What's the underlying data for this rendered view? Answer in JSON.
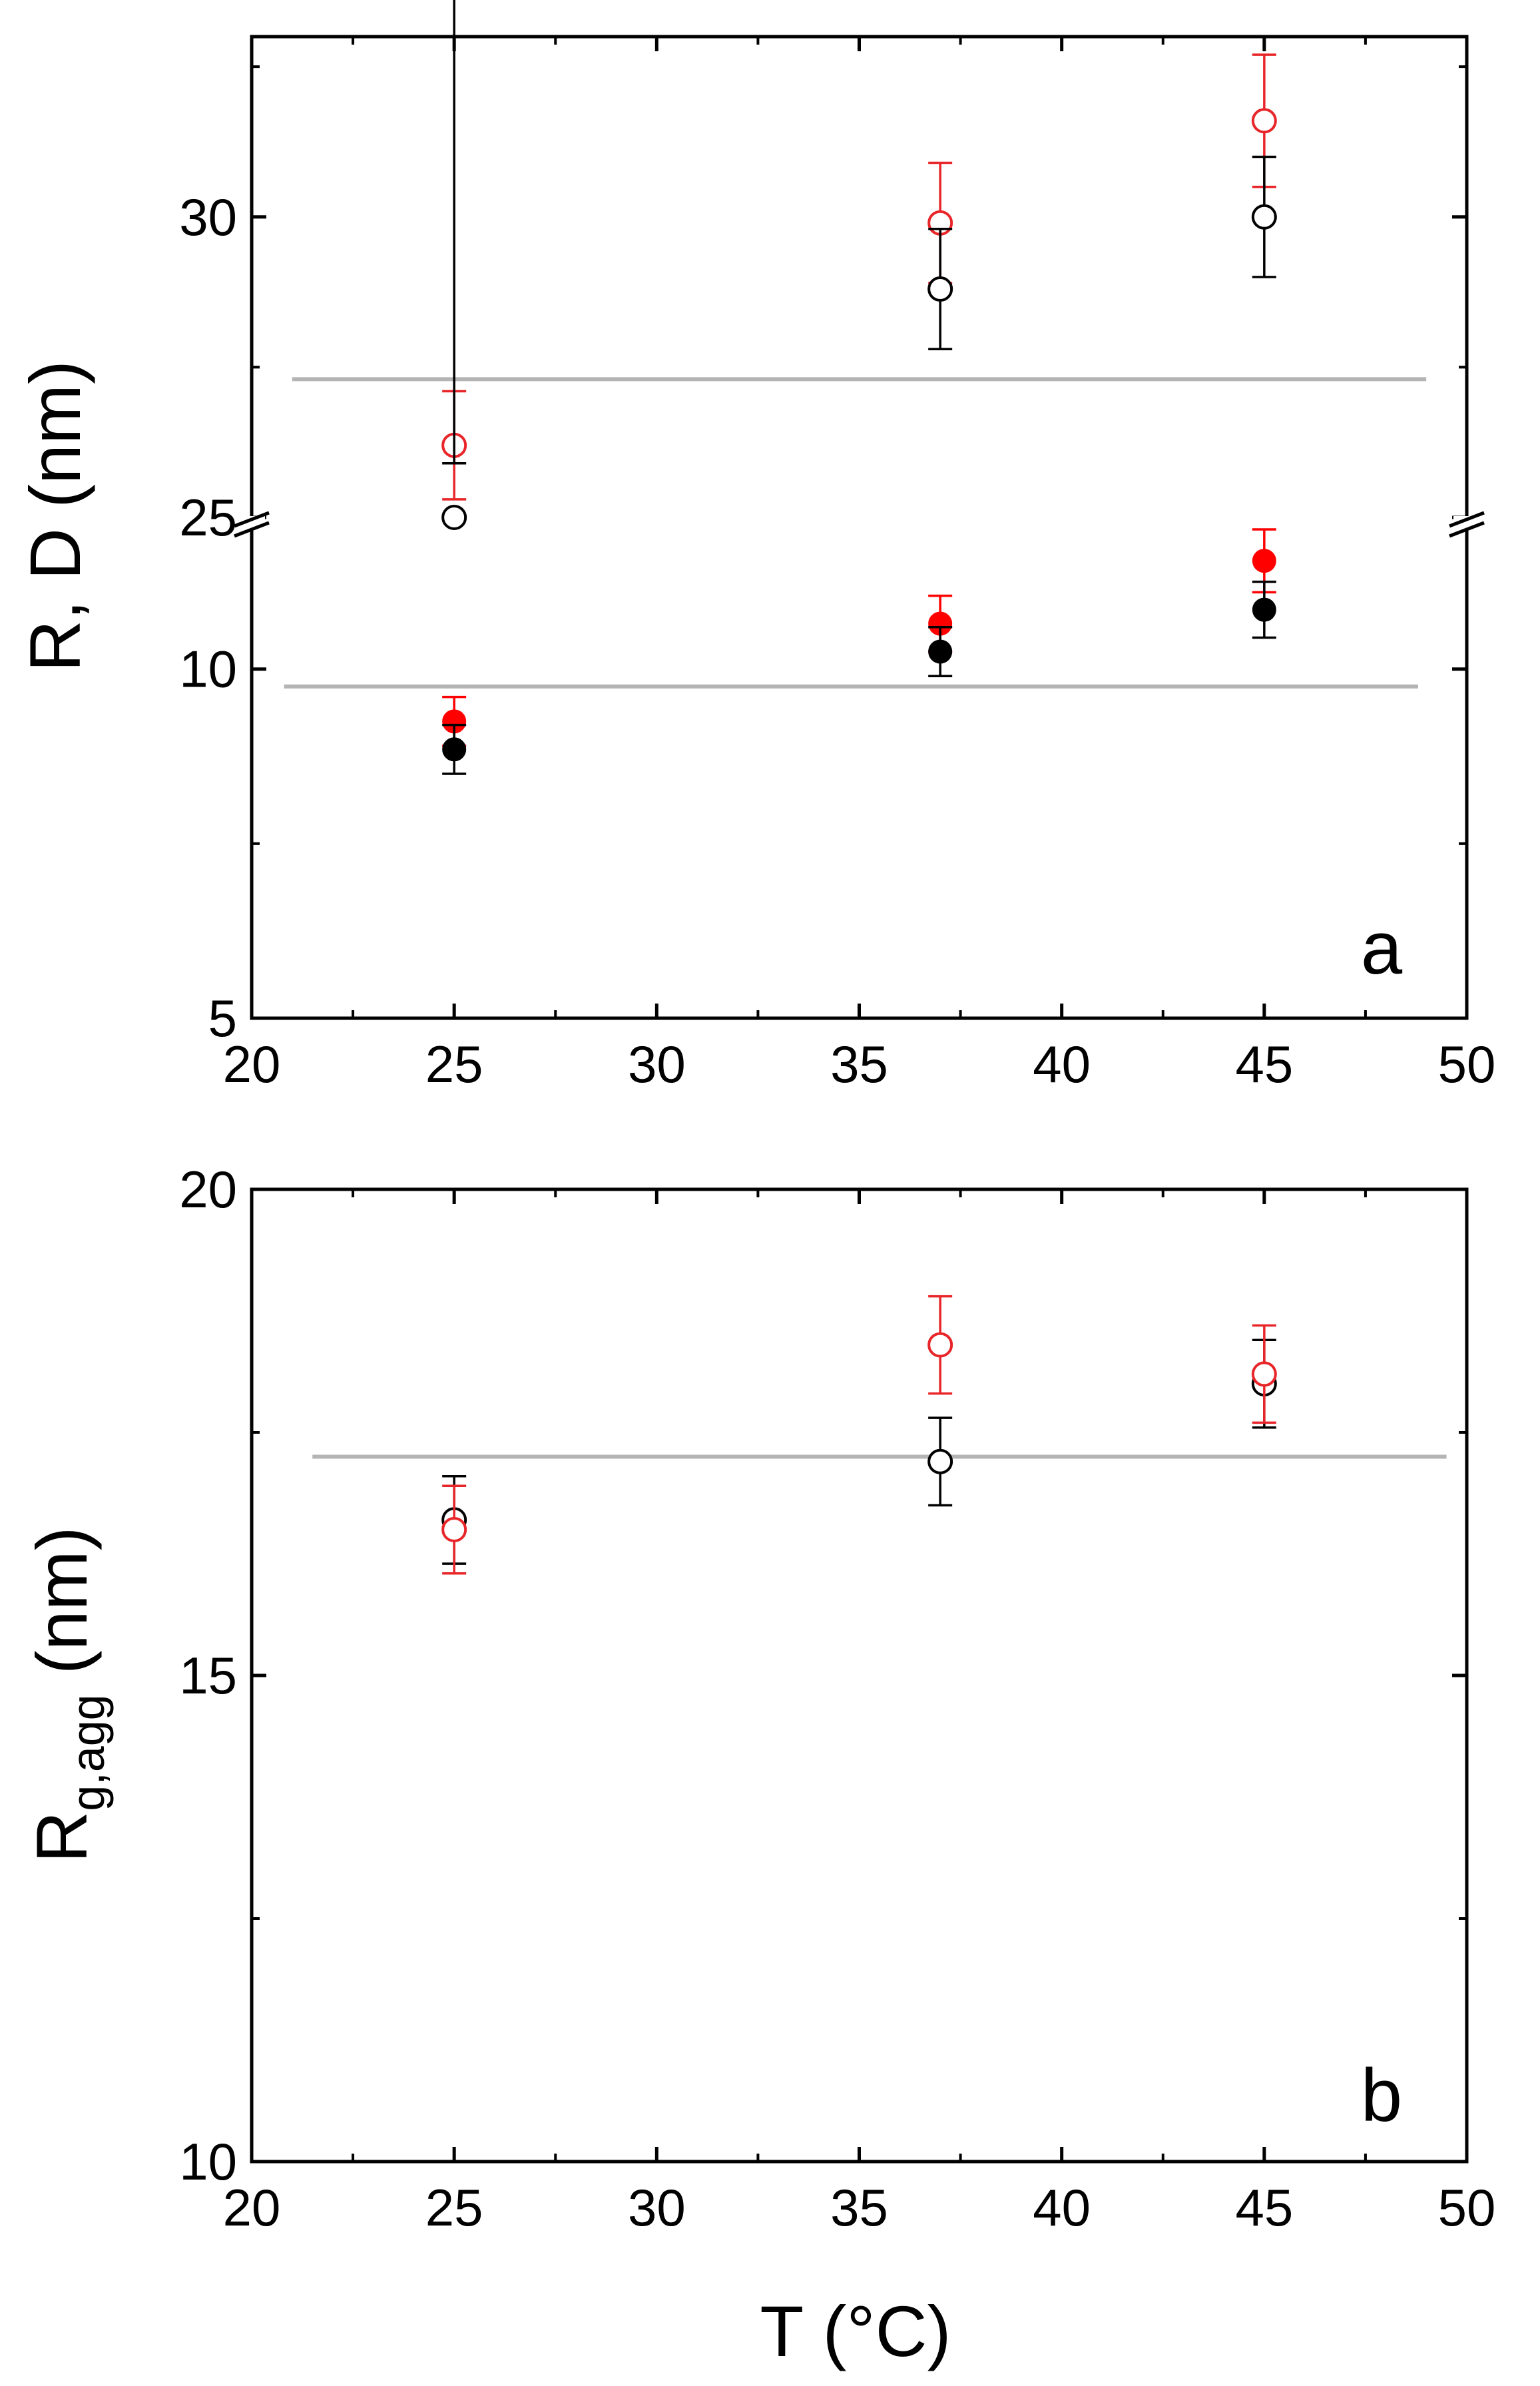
{
  "figure": {
    "panel_a_letter": "a",
    "panel_b_letter": "b"
  },
  "chart_data": [
    {
      "type": "scatter",
      "panel": "a",
      "ylabel": "R, D (nm)",
      "xlim": [
        20,
        50
      ],
      "x_ticks": [
        "20",
        "25",
        "30",
        "35",
        "40",
        "45",
        "50"
      ],
      "y_broken_axis": true,
      "y_lower_range": [
        5,
        12
      ],
      "y_upper_range": [
        25,
        33
      ],
      "y_ticks": [
        "5",
        "10",
        "25",
        "30"
      ],
      "grid": false,
      "series": [
        {
          "style": "open-red",
          "color": "#e8262a",
          "points": [
            {
              "x": 25,
              "y": 26.2,
              "err": 0.9
            },
            {
              "x": 37,
              "y": 29.9,
              "err": 1.0
            },
            {
              "x": 45,
              "y": 31.6,
              "err": 1.1
            }
          ]
        },
        {
          "style": "open-black",
          "color": "#000000",
          "points": [
            {
              "x": 25,
              "y": 25.0,
              "err": 0.9
            },
            {
              "x": 37,
              "y": 28.8,
              "err": 1.0
            },
            {
              "x": 45,
              "y": 30.0,
              "err": 1.0
            }
          ]
        },
        {
          "style": "filled-red",
          "color": "#ff0000",
          "points": [
            {
              "x": 25,
              "y": 9.25,
              "err": 0.35
            },
            {
              "x": 37,
              "y": 10.65,
              "err": 0.4
            },
            {
              "x": 45,
              "y": 11.55,
              "err": 0.45
            }
          ]
        },
        {
          "style": "filled-black",
          "color": "#000000",
          "points": [
            {
              "x": 25,
              "y": 8.85,
              "err": 0.35
            },
            {
              "x": 37,
              "y": 10.25,
              "err": 0.35
            },
            {
              "x": 45,
              "y": 10.85,
              "err": 0.4
            }
          ]
        }
      ],
      "reference_lines": [
        {
          "segment": "upper",
          "y": 27.3,
          "x_range": [
            21,
            49
          ],
          "color": "#b4b4b4"
        },
        {
          "segment": "lower",
          "y": 9.75,
          "x_range": [
            20.8,
            48.8
          ],
          "color": "#b4b4b4"
        }
      ]
    },
    {
      "type": "scatter",
      "panel": "b",
      "xlabel": "T (°C)",
      "ylabel": "Rg,agg (nm)",
      "xlim": [
        20,
        50
      ],
      "ylim": [
        10,
        20
      ],
      "x_ticks": [
        "20",
        "25",
        "30",
        "35",
        "40",
        "45",
        "50"
      ],
      "y_ticks": [
        "10",
        "15",
        "20"
      ],
      "grid": false,
      "series": [
        {
          "style": "open-black",
          "color": "#000000",
          "points": [
            {
              "x": 25,
              "y": 16.6,
              "err": 0.45
            },
            {
              "x": 37,
              "y": 17.2,
              "err": 0.45
            },
            {
              "x": 45,
              "y": 18.0,
              "err": 0.45
            }
          ]
        },
        {
          "style": "open-red",
          "color": "#e8262a",
          "points": [
            {
              "x": 25,
              "y": 16.5,
              "err": 0.45
            },
            {
              "x": 37,
              "y": 18.4,
              "err": 0.5
            },
            {
              "x": 45,
              "y": 18.1,
              "err": 0.5
            }
          ]
        }
      ],
      "reference_lines": [
        {
          "y": 17.25,
          "x_range": [
            21.5,
            49.5
          ],
          "color": "#b4b4b4"
        }
      ]
    }
  ]
}
